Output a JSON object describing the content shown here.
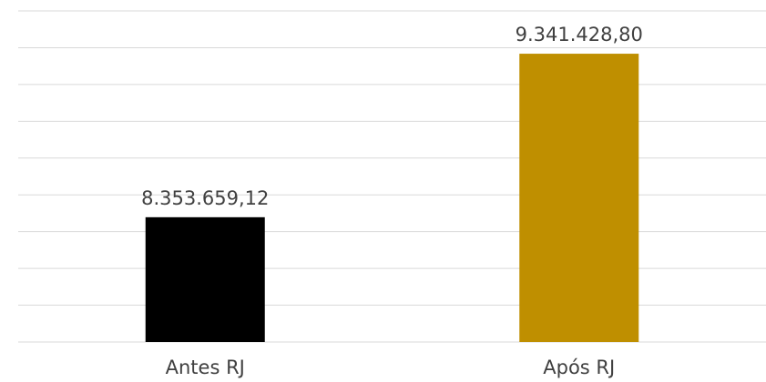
{
  "chart_data": {
    "type": "bar",
    "categories": [
      "Antes RJ",
      "Após RJ"
    ],
    "values": [
      8353659.12,
      9341428.8
    ],
    "value_labels": [
      "8.353.659,12",
      "9.341.428,80"
    ],
    "colors": [
      "#000000",
      "#bf8f00"
    ],
    "ylim": [
      7600000,
      9600000
    ],
    "grid": true,
    "legend": "none",
    "title": "",
    "xlabel": "",
    "ylabel": ""
  }
}
